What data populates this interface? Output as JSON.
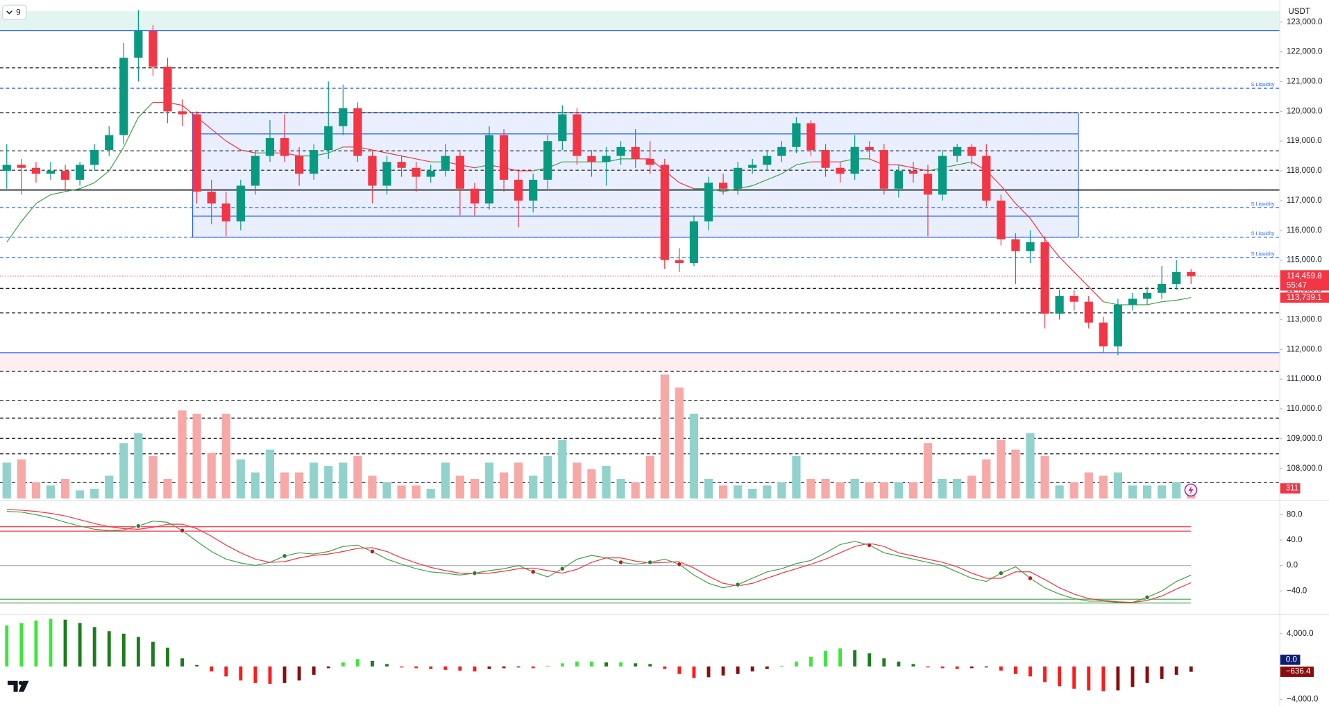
{
  "chart_data": {
    "type": "candlestick",
    "interval": "9",
    "currency": "USDT",
    "countdown": "55:47",
    "up_color": "#089981",
    "down_color": "#f23645",
    "ylim": [
      106930,
      123740
    ],
    "yticks": [
      {
        "value": 108000,
        "label": "108,000.0"
      },
      {
        "value": 109000,
        "label": "109,000.0"
      },
      {
        "value": 110000,
        "label": "110,000.0"
      },
      {
        "value": 111000,
        "label": "111,000.0"
      },
      {
        "value": 112000,
        "label": "112,000.0"
      },
      {
        "value": 113000,
        "label": "113,000.0"
      },
      {
        "value": 114000,
        "label": "114,000.0"
      },
      {
        "value": 115000,
        "label": "115,000.0"
      },
      {
        "value": 116000,
        "label": "116,000.0"
      },
      {
        "value": 117000,
        "label": "117,000.0"
      },
      {
        "value": 118000,
        "label": "118,000.0"
      },
      {
        "value": 119000,
        "label": "119,000.0"
      },
      {
        "value": 120000,
        "label": "120,000.0"
      },
      {
        "value": 121000,
        "label": "121,000.0"
      },
      {
        "value": 122000,
        "label": "122,000.0"
      },
      {
        "value": 123000,
        "label": "123,000.0"
      }
    ],
    "candles": [
      [
        118000,
        118900,
        117400,
        118200
      ],
      [
        118200,
        118400,
        117200,
        118100
      ],
      [
        118100,
        118300,
        117600,
        117900
      ],
      [
        117900,
        118300,
        117700,
        118000
      ],
      [
        118000,
        118200,
        117300,
        117700
      ],
      [
        117700,
        118300,
        117500,
        118200
      ],
      [
        118200,
        118900,
        118000,
        118700
      ],
      [
        118700,
        119500,
        118500,
        119200
      ],
      [
        119200,
        122300,
        118900,
        121800
      ],
      [
        121800,
        123400,
        121000,
        122700
      ],
      [
        122700,
        122900,
        121200,
        121500
      ],
      [
        121500,
        121800,
        119600,
        120000
      ],
      [
        120000,
        120400,
        119500,
        119900
      ],
      [
        119900,
        120000,
        116900,
        117300
      ],
      [
        117300,
        117700,
        116200,
        116900
      ],
      [
        116900,
        117300,
        115800,
        116300
      ],
      [
        116300,
        117700,
        116000,
        117500
      ],
      [
        117500,
        118700,
        117200,
        118500
      ],
      [
        118500,
        119700,
        118300,
        119100
      ],
      [
        119100,
        119900,
        118300,
        118500
      ],
      [
        118500,
        118800,
        117500,
        117900
      ],
      [
        117900,
        118900,
        117700,
        118700
      ],
      [
        118700,
        121000,
        118400,
        119500
      ],
      [
        119500,
        120900,
        119200,
        120100
      ],
      [
        120100,
        120300,
        118300,
        118500
      ],
      [
        118500,
        118700,
        116900,
        117500
      ],
      [
        117500,
        118500,
        117200,
        118300
      ],
      [
        118300,
        118500,
        117800,
        118100
      ],
      [
        118100,
        118300,
        117300,
        117800
      ],
      [
        117800,
        118200,
        117600,
        118000
      ],
      [
        118000,
        118900,
        117800,
        118500
      ],
      [
        118500,
        118700,
        116500,
        117400
      ],
      [
        117400,
        117600,
        116500,
        116900
      ],
      [
        116900,
        119500,
        116700,
        119200
      ],
      [
        119200,
        119400,
        117300,
        117700
      ],
      [
        117700,
        118000,
        116100,
        117000
      ],
      [
        117000,
        117900,
        116600,
        117700
      ],
      [
        117700,
        119200,
        117400,
        119000
      ],
      [
        119000,
        120200,
        118700,
        119900
      ],
      [
        119900,
        120100,
        118200,
        118500
      ],
      [
        118500,
        118700,
        117800,
        118300
      ],
      [
        118300,
        118800,
        117500,
        118500
      ],
      [
        118500,
        119000,
        118200,
        118800
      ],
      [
        118800,
        119400,
        118100,
        118400
      ],
      [
        118400,
        119000,
        117900,
        118200
      ],
      [
        118200,
        118400,
        114700,
        115000
      ],
      [
        115000,
        115400,
        114600,
        114900
      ],
      [
        114900,
        116500,
        114800,
        116300
      ],
      [
        116300,
        117800,
        116000,
        117600
      ],
      [
        117600,
        117900,
        117200,
        117400
      ],
      [
        117400,
        118300,
        117200,
        118100
      ],
      [
        118100,
        118400,
        117900,
        118200
      ],
      [
        118200,
        118700,
        118000,
        118500
      ],
      [
        118500,
        119000,
        118300,
        118800
      ],
      [
        118800,
        119800,
        118600,
        119600
      ],
      [
        119600,
        119700,
        118500,
        118700
      ],
      [
        118700,
        118900,
        117800,
        118100
      ],
      [
        118100,
        118300,
        117600,
        117900
      ],
      [
        117900,
        119200,
        117700,
        118800
      ],
      [
        118800,
        119000,
        118400,
        118700
      ],
      [
        118700,
        118900,
        117200,
        117400
      ],
      [
        117400,
        118200,
        117100,
        118000
      ],
      [
        118000,
        118300,
        117600,
        117900
      ],
      [
        117900,
        118200,
        115800,
        117200
      ],
      [
        117200,
        118700,
        117000,
        118500
      ],
      [
        118500,
        118900,
        118300,
        118800
      ],
      [
        118800,
        118900,
        118200,
        118500
      ],
      [
        118500,
        118900,
        116800,
        117000
      ],
      [
        117000,
        117200,
        115500,
        115700
      ],
      [
        115700,
        115900,
        114200,
        115300
      ],
      [
        115300,
        116000,
        114900,
        115600
      ],
      [
        115600,
        115800,
        112700,
        113200
      ],
      [
        113200,
        114000,
        113000,
        113800
      ],
      [
        113800,
        114000,
        113300,
        113600
      ],
      [
        113600,
        113800,
        112700,
        112900
      ],
      [
        112900,
        113100,
        111900,
        112100
      ],
      [
        112100,
        113700,
        111800,
        113500
      ],
      [
        113500,
        113900,
        113300,
        113700
      ],
      [
        113700,
        114100,
        113500,
        113900
      ],
      [
        113900,
        114800,
        113700,
        114200
      ],
      [
        114200,
        115000,
        114000,
        114600
      ],
      [
        114600,
        114700,
        114200,
        114459.8
      ]
    ],
    "last_price_label": "114,459.8",
    "ma": {
      "up_color": "#43a047",
      "down_color": "#f23645",
      "value_label": "113,739.1",
      "values": [
        115600,
        116300,
        116900,
        117200,
        117300,
        117400,
        117600,
        118000,
        118800,
        119800,
        120300,
        120300,
        120200,
        119800,
        119400,
        119000,
        118700,
        118600,
        118600,
        118600,
        118500,
        118500,
        118600,
        118800,
        118800,
        118700,
        118600,
        118500,
        118400,
        118300,
        118300,
        118200,
        118100,
        118200,
        118100,
        118000,
        118000,
        118100,
        118300,
        118300,
        118300,
        118300,
        118400,
        118400,
        118400,
        118000,
        117600,
        117400,
        117400,
        117300,
        117400,
        117500,
        117700,
        117900,
        118200,
        118300,
        118300,
        118300,
        118400,
        118400,
        118200,
        118200,
        118100,
        118000,
        118100,
        118200,
        118300,
        118000,
        117500,
        116900,
        116400,
        115700,
        115100,
        114600,
        114100,
        113600,
        113500,
        113500,
        113500,
        113600,
        113650,
        113739.1
      ]
    },
    "levels": [
      {
        "value": 122712,
        "color": "#2962ff",
        "style": "solid"
      },
      {
        "value": 121459,
        "color": "#131722",
        "style": "dashed"
      },
      {
        "value": 120775,
        "color": "#2962ff",
        "style": "dashed",
        "label": "S Liquidity"
      },
      {
        "value": 119950,
        "color": "#131722",
        "style": "dashed"
      },
      {
        "value": 118670,
        "color": "#131722",
        "style": "dashed"
      },
      {
        "value": 118020,
        "color": "#131722",
        "style": "dashed"
      },
      {
        "value": 117356,
        "color": "#131722",
        "style": "solid"
      },
      {
        "value": 116766,
        "color": "#2962ff",
        "style": "dashed",
        "label": "S Liquidity"
      },
      {
        "value": 115770,
        "color": "#2962ff",
        "style": "dashed",
        "label": "S Liquidity"
      },
      {
        "value": 115085,
        "color": "#2962ff",
        "style": "dashed",
        "label": "S Liquidity"
      },
      {
        "value": 114050,
        "color": "#131722",
        "style": "dashed"
      },
      {
        "value": 113225,
        "color": "#131722",
        "style": "dashed"
      },
      {
        "value": 111886,
        "color": "#2962ff",
        "style": "solid"
      },
      {
        "value": 111260,
        "color": "#131722",
        "style": "dashed"
      },
      {
        "value": 110290,
        "color": "#131722",
        "style": "dashed"
      },
      {
        "value": 109690,
        "color": "#131722",
        "style": "dashed"
      },
      {
        "value": 109010,
        "color": "#131722",
        "style": "dashed"
      },
      {
        "value": 108490,
        "color": "#131722",
        "style": "dashed"
      },
      {
        "value": 107520,
        "color": "#131722",
        "style": "dashed"
      }
    ],
    "zones": [
      {
        "from": 122712,
        "to": 123368,
        "color": "#e3f5f0"
      },
      {
        "from": 111260,
        "to": 111886,
        "color": "#fdeef0"
      }
    ],
    "box": {
      "start": 13,
      "end": 73,
      "from": 115770,
      "to": 119950,
      "lines": [
        119240,
        116480
      ],
      "color": "#2962ff"
    },
    "volume": {
      "ylim": [
        0,
        3950
      ],
      "up_color": "#92d2cc",
      "down_color": "#f7a9a7",
      "value_label": "311",
      "values": [
        1100,
        1200,
        500,
        400,
        600,
        250,
        300,
        700,
        1700,
        2000,
        1300,
        600,
        2700,
        2600,
        1400,
        2600,
        1200,
        800,
        1500,
        800,
        800,
        1100,
        1000,
        1100,
        1300,
        700,
        500,
        400,
        400,
        300,
        1100,
        700,
        600,
        1100,
        800,
        1100,
        700,
        1300,
        1800,
        1100,
        900,
        1000,
        600,
        500,
        1300,
        3800,
        3400,
        2600,
        600,
        400,
        400,
        300,
        400,
        500,
        1300,
        600,
        600,
        500,
        600,
        500,
        500,
        500,
        500,
        1700,
        600,
        600,
        700,
        1200,
        1800,
        1500,
        2000,
        1300,
        400,
        500,
        800,
        700,
        800,
        400,
        400,
        400,
        500,
        311
      ]
    },
    "oscillator": {
      "ylim": [
        -73.3,
        96
      ],
      "yticks": [
        {
          "value": 80,
          "label": "80.0"
        },
        {
          "value": 40,
          "label": "40.0"
        },
        {
          "value": 0,
          "label": "0.0"
        },
        {
          "value": -40,
          "label": "−40.0"
        }
      ],
      "bands": [
        {
          "value": 61,
          "color": "#f23645"
        },
        {
          "value": 54,
          "color": "#f23645"
        },
        {
          "value": -53,
          "color": "#43a047"
        },
        {
          "value": -59,
          "color": "#43a047"
        }
      ],
      "series": [
        {
          "color": "#43a047",
          "values": [
            85,
            84,
            80,
            75,
            68,
            62,
            57,
            55,
            56,
            62,
            70,
            68,
            55,
            38,
            22,
            10,
            4,
            0,
            5,
            15,
            20,
            18,
            22,
            30,
            32,
            22,
            10,
            2,
            -5,
            -10,
            -12,
            -15,
            -12,
            -8,
            -5,
            0,
            -10,
            -18,
            -5,
            10,
            16,
            12,
            5,
            2,
            5,
            10,
            2,
            -15,
            -28,
            -35,
            -30,
            -20,
            -10,
            -5,
            3,
            8,
            20,
            33,
            38,
            32,
            20,
            15,
            10,
            5,
            0,
            -10,
            -20,
            -25,
            -12,
            -2,
            -20,
            -35,
            -45,
            -52,
            -56,
            -56,
            -58,
            -58,
            -50,
            -40,
            -25,
            -15
          ]
        },
        {
          "color": "#f23645",
          "values": [
            88,
            87,
            85,
            82,
            78,
            72,
            66,
            61,
            58,
            57,
            60,
            65,
            65,
            58,
            46,
            32,
            20,
            10,
            5,
            6,
            12,
            16,
            18,
            22,
            27,
            28,
            22,
            12,
            4,
            -3,
            -8,
            -12,
            -13,
            -12,
            -9,
            -5,
            -4,
            -8,
            -12,
            -6,
            5,
            12,
            12,
            7,
            4,
            5,
            6,
            -4,
            -17,
            -28,
            -32,
            -28,
            -20,
            -12,
            -5,
            2,
            10,
            20,
            30,
            35,
            30,
            20,
            15,
            10,
            5,
            -2,
            -12,
            -20,
            -20,
            -10,
            -10,
            -22,
            -35,
            -45,
            -52,
            -55,
            -57,
            -58,
            -55,
            -48,
            -37,
            -27
          ]
        }
      ],
      "cross_colors": {
        "up": "#2e7d32",
        "down": "#b71c1c"
      }
    },
    "macd": {
      "ylim": [
        -4316,
        6000
      ],
      "yticks": [
        {
          "value": 4000,
          "label": "4,000.0"
        },
        {
          "value": -4000,
          "label": "−4,000.0"
        }
      ],
      "colors": {
        "up_rise": "#3ce63c",
        "up_fall": "#1b7d1b",
        "down_fall": "#ff1a1a",
        "down_rise": "#880e0e"
      },
      "line_value": {
        "value": 0,
        "label": "0.0"
      },
      "value_label": "−636.4",
      "values": [
        5000,
        5300,
        5600,
        5800,
        5700,
        5300,
        4800,
        4300,
        4000,
        3600,
        3000,
        2300,
        1000,
        200,
        -600,
        -1200,
        -1700,
        -2000,
        -2100,
        -2000,
        -1700,
        -1000,
        -200,
        500,
        900,
        700,
        300,
        -100,
        -200,
        -300,
        -400,
        -500,
        -600,
        -300,
        -200,
        -100,
        -200,
        100,
        400,
        600,
        600,
        500,
        500,
        400,
        300,
        -300,
        -900,
        -1400,
        -1300,
        -1100,
        -900,
        -600,
        -300,
        100,
        600,
        1200,
        1900,
        2200,
        2000,
        1600,
        1000,
        600,
        300,
        -100,
        -200,
        -300,
        -200,
        -100,
        -500,
        -900,
        -1200,
        -1900,
        -2400,
        -2700,
        -2900,
        -3000,
        -2900,
        -2500,
        -2000,
        -1500,
        -1000,
        -636.4
      ]
    }
  }
}
